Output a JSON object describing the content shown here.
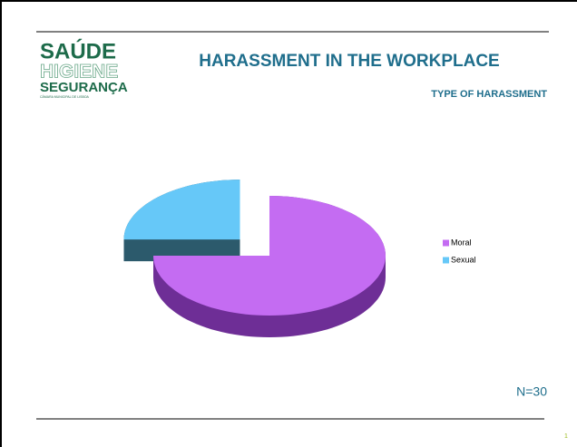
{
  "logo": {
    "line1": "SAÚDE",
    "line2": "HIGIENE",
    "line3": "SEGURANÇA",
    "tagline": "CÂMARA MUNICIPAL DE LISBOA"
  },
  "chart_data": {
    "type": "pie",
    "title": "HARASSMENT IN THE WORKPLACE",
    "subtitle": "TYPE OF HARASSMENT",
    "categories": [
      "Moral",
      "Sexual"
    ],
    "values": [
      75,
      25
    ],
    "colors": [
      "#c46cf2",
      "#66c8f8"
    ],
    "side_colors": [
      "#6e2e96",
      "#2c5a6c"
    ],
    "exploded": [
      false,
      true
    ],
    "legend": "right",
    "annotation": "N=30"
  },
  "page_number": "1"
}
